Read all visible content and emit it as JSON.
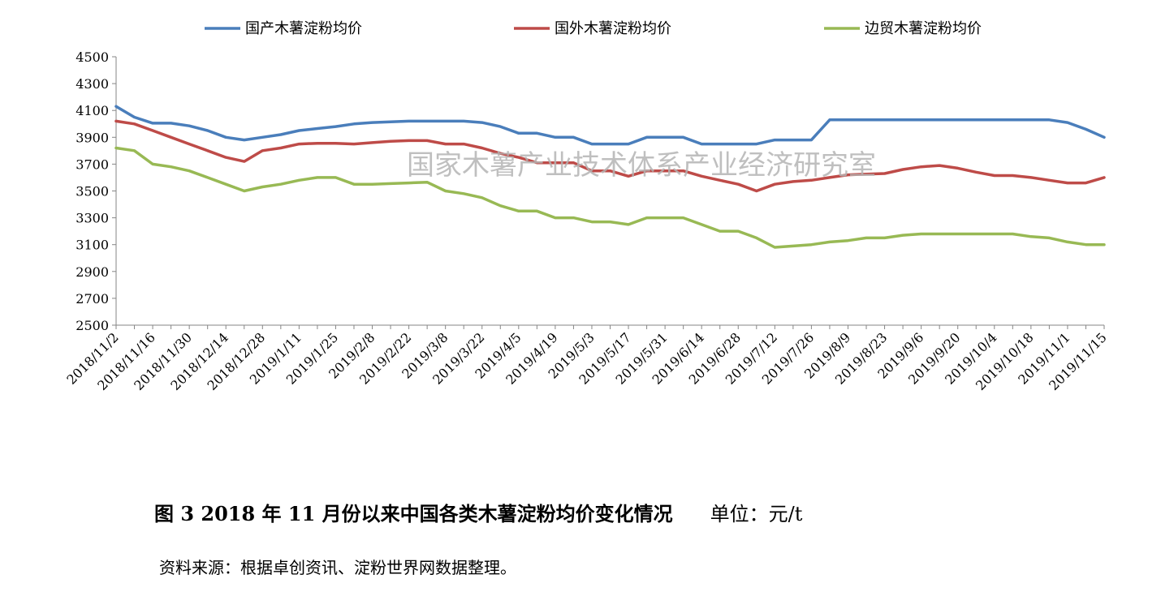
{
  "chart_data": {
    "type": "line",
    "watermark": "国家木薯产业技术体系产业经济研究室",
    "ylim": [
      2500,
      4500
    ],
    "yticks": [
      2500,
      2700,
      2900,
      3100,
      3300,
      3500,
      3700,
      3900,
      4100,
      4300,
      4500
    ],
    "grid": false,
    "legend_position": "top",
    "categories": [
      "2018/11/2",
      "2018/11/9",
      "2018/11/16",
      "2018/11/23",
      "2018/11/30",
      "2018/12/7",
      "2018/12/14",
      "2018/12/21",
      "2018/12/28",
      "2019/1/4",
      "2019/1/11",
      "2019/1/18",
      "2019/1/25",
      "2019/2/1",
      "2019/2/8",
      "2019/2/15",
      "2019/2/22",
      "2019/3/1",
      "2019/3/8",
      "2019/3/15",
      "2019/3/22",
      "2019/3/29",
      "2019/4/5",
      "2019/4/12",
      "2019/4/19",
      "2019/4/26",
      "2019/5/3",
      "2019/5/10",
      "2019/5/17",
      "2019/5/24",
      "2019/5/31",
      "2019/6/7",
      "2019/6/14",
      "2019/6/21",
      "2019/6/28",
      "2019/7/5",
      "2019/7/12",
      "2019/7/19",
      "2019/7/26",
      "2019/8/2",
      "2019/8/9",
      "2019/8/16",
      "2019/8/23",
      "2019/8/30",
      "2019/9/6",
      "2019/9/13",
      "2019/9/20",
      "2019/9/27",
      "2019/10/4",
      "2019/10/11",
      "2019/10/18",
      "2019/10/25",
      "2019/11/1",
      "2019/11/8",
      "2019/11/15"
    ],
    "tick_labels": [
      "2018/11/2",
      "2018/11/16",
      "2018/11/30",
      "2018/12/14",
      "2018/12/28",
      "2019/1/11",
      "2019/1/25",
      "2019/2/8",
      "2019/2/22",
      "2019/3/8",
      "2019/3/22",
      "2019/4/5",
      "2019/4/19",
      "2019/5/3",
      "2019/5/17",
      "2019/5/31",
      "2019/6/14",
      "2019/6/28",
      "2019/7/12",
      "2019/7/26",
      "2019/8/9",
      "2019/8/23",
      "2019/9/6",
      "2019/9/20",
      "2019/10/4",
      "2019/10/18",
      "2019/11/1",
      "2019/11/15"
    ],
    "series": [
      {
        "name": "国产木薯淀粉均价",
        "color": "#4a7ebb",
        "values": [
          4130,
          4050,
          4005,
          4005,
          3985,
          3950,
          3900,
          3880,
          3900,
          3920,
          3950,
          3965,
          3980,
          4000,
          4010,
          4015,
          4020,
          4020,
          4020,
          4020,
          4010,
          3980,
          3930,
          3930,
          3900,
          3900,
          3850,
          3850,
          3850,
          3900,
          3900,
          3900,
          3850,
          3850,
          3850,
          3850,
          3880,
          3880,
          3880,
          4030,
          4030,
          4030,
          4030,
          4030,
          4030,
          4030,
          4030,
          4030,
          4030,
          4030,
          4030,
          4030,
          4010,
          3960,
          3900
        ]
      },
      {
        "name": "国外木薯淀粉均价",
        "color": "#be4b48",
        "values": [
          4020,
          4000,
          3950,
          3900,
          3850,
          3800,
          3750,
          3720,
          3800,
          3820,
          3850,
          3855,
          3855,
          3850,
          3860,
          3870,
          3875,
          3875,
          3850,
          3850,
          3820,
          3780,
          3750,
          3710,
          3710,
          3710,
          3650,
          3650,
          3610,
          3650,
          3650,
          3650,
          3610,
          3580,
          3550,
          3500,
          3550,
          3570,
          3580,
          3600,
          3620,
          3625,
          3630,
          3660,
          3680,
          3690,
          3670,
          3640,
          3615,
          3615,
          3600,
          3580,
          3560,
          3560,
          3600
        ]
      },
      {
        "name": "边贸木薯淀粉均价",
        "color": "#98b954",
        "values": [
          3820,
          3800,
          3700,
          3680,
          3650,
          3600,
          3550,
          3500,
          3530,
          3550,
          3580,
          3600,
          3600,
          3550,
          3550,
          3555,
          3560,
          3565,
          3500,
          3480,
          3450,
          3390,
          3350,
          3350,
          3300,
          3300,
          3270,
          3270,
          3250,
          3300,
          3300,
          3300,
          3250,
          3200,
          3200,
          3150,
          3080,
          3090,
          3100,
          3120,
          3130,
          3150,
          3150,
          3170,
          3180,
          3180,
          3180,
          3180,
          3180,
          3180,
          3160,
          3150,
          3120,
          3100,
          3100
        ]
      }
    ]
  },
  "caption": {
    "title": "图 3   2018 年 11 月份以来中国各类木薯淀粉均价变化情况",
    "unit": "单位：元/t"
  },
  "source": "资料来源：根据卓创资讯、淀粉世界网数据整理。"
}
